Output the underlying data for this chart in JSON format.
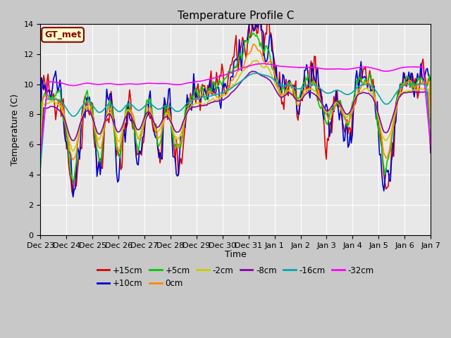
{
  "title": "Temperature Profile C",
  "xlabel": "Time",
  "ylabel": "Temperature (C)",
  "ylim": [
    0,
    14
  ],
  "yticks": [
    0,
    2,
    4,
    6,
    8,
    10,
    12,
    14
  ],
  "legend_label": "GT_met",
  "legend_box_facecolor": "#ffffcc",
  "legend_box_edgecolor": "#8B0000",
  "legend_text_color": "#8B0000",
  "fig_facecolor": "#c8c8c8",
  "ax_facecolor": "#e8e8e8",
  "grid_color": "#ffffff",
  "x_tick_labels": [
    "Dec 23",
    "Dec 24",
    "Dec 25",
    "Dec 26",
    "Dec 27",
    "Dec 28",
    "Dec 29",
    "Dec 30",
    "Dec 31",
    "Jan 1",
    "Jan 2",
    "Jan 3",
    "Jan 4",
    "Jan 5",
    "Jan 6",
    "Jan 7"
  ],
  "series": [
    {
      "label": "+15cm",
      "color": "#dd0000",
      "lw": 1.2
    },
    {
      "label": "+10cm",
      "color": "#0000cc",
      "lw": 1.2
    },
    {
      "label": "+5cm",
      "color": "#00cc00",
      "lw": 1.2
    },
    {
      "label": "0cm",
      "color": "#ff8800",
      "lw": 1.2
    },
    {
      "label": "-2cm",
      "color": "#cccc00",
      "lw": 1.2
    },
    {
      "label": "-8cm",
      "color": "#8800aa",
      "lw": 1.2
    },
    {
      "label": "-16cm",
      "color": "#00aaaa",
      "lw": 1.2
    },
    {
      "label": "-32cm",
      "color": "#ff00ff",
      "lw": 1.2
    }
  ]
}
